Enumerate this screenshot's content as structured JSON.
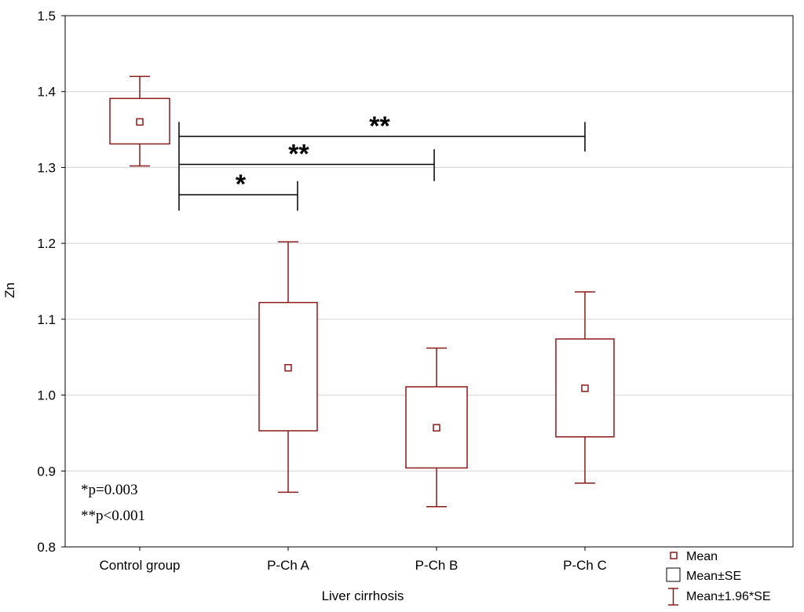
{
  "chart_data": {
    "type": "box",
    "xlabel": "Liver cirrhosis",
    "ylabel": "Zn",
    "ylim": [
      0.8,
      1.5
    ],
    "yticks": [
      "0.8",
      "0.9",
      "1.0",
      "1.1",
      "1.2",
      "1.3",
      "1.4",
      "1.5"
    ],
    "grid": true,
    "series_color": "#8b1a1a",
    "categories": [
      "Control group",
      "P-Ch A",
      "P-Ch B",
      "P-Ch C"
    ],
    "groups": [
      {
        "name": "Control group",
        "mean": 1.36,
        "se_low": 1.331,
        "se_high": 1.391,
        "ci_low": 1.302,
        "ci_high": 1.42
      },
      {
        "name": "P-Ch A",
        "mean": 1.036,
        "se_low": 0.953,
        "se_high": 1.122,
        "ci_low": 0.872,
        "ci_high": 1.202
      },
      {
        "name": "P-Ch B",
        "mean": 0.957,
        "se_low": 0.904,
        "se_high": 1.011,
        "ci_low": 0.853,
        "ci_high": 1.062
      },
      {
        "name": "P-Ch C",
        "mean": 1.009,
        "se_low": 0.945,
        "se_high": 1.074,
        "ci_low": 0.884,
        "ci_high": 1.136
      }
    ],
    "significance": [
      {
        "from": 0,
        "to": 1,
        "label": "*",
        "level": 1.264,
        "left_ext": [
          1.243,
          1.282
        ],
        "right_ext": [
          1.243,
          1.282
        ]
      },
      {
        "from": 0,
        "to": 2,
        "label": "**",
        "level": 1.304,
        "left_ext": [
          1.282,
          1.324
        ],
        "right_ext": [
          1.282,
          1.324
        ]
      },
      {
        "from": 0,
        "to": 3,
        "label": "**",
        "level": 1.341,
        "left_ext": [
          1.324,
          1.36
        ],
        "right_ext": [
          1.321,
          1.36
        ]
      }
    ],
    "annotations": [
      "*p=0.003",
      "**p<0.001"
    ],
    "legend": {
      "position": "bottom-right",
      "items": [
        "Mean",
        "Mean±SE",
        "Mean±1.96*SE"
      ]
    }
  }
}
